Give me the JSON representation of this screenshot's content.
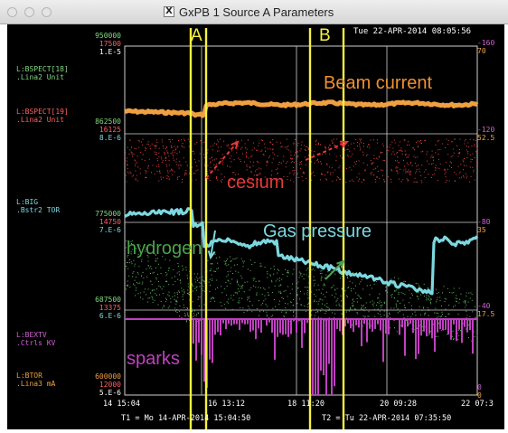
{
  "window": {
    "title": "GxPB 1 Source A Parameters",
    "x11_icon": "X"
  },
  "datetime": "Tue 22-APR-2014 08:05:56",
  "colors": {
    "orange": "#f0a040",
    "red": "#ff5050",
    "cyan": "#7cd8e0",
    "green": "#5ab05a",
    "magenta": "#c040c0",
    "yellow": "#f5f040",
    "grid": "#d0d0d0"
  },
  "channels": [
    {
      "name": "L:BSPECT[18]",
      "sub": ".Lina2 Unit"
    },
    {
      "name": "L:BSPECT[19]",
      "sub": ".Lina2 Unit"
    },
    {
      "name": "L:BIG",
      "sub": ".Bstr2 TOR"
    },
    {
      "name": "L:BEXTV",
      "sub": ".Ctrls  KV"
    },
    {
      "name": "L:BTOR",
      "sub": ".Lina3 mA"
    }
  ],
  "left_axis": {
    "top": [
      "950000",
      "17500",
      "1.E-5"
    ],
    "mid1": [
      "862500",
      "16125",
      "8.E-6"
    ],
    "mid2": [
      "775000",
      "14750",
      "7.E-6"
    ],
    "mid3": [
      "687500",
      "13375",
      "6.E-6"
    ],
    "bottom": [
      "600000",
      "12000",
      "5.E-6"
    ]
  },
  "right_axis": {
    "top": [
      "-160",
      "70"
    ],
    "mid1": [
      "-120",
      "52.5"
    ],
    "mid2": [
      "-80",
      "35"
    ],
    "mid3": [
      "-40",
      "17.5"
    ],
    "bottom": [
      "0",
      "0"
    ]
  },
  "x_ticks": [
    "14 15:04",
    "16 13:12",
    "18 11:20",
    "20 09:28",
    "22 07:3"
  ],
  "time_range": {
    "t1": "T1 = Mo 14-APR-2014 15:04:50",
    "t2": "T2 = Tu 22-APR-2014 07:35:50"
  },
  "annotations": {
    "A": "A",
    "B": "B",
    "beam": "Beam current",
    "cesium": "cesium",
    "gas": "Gas pressure",
    "hydrogen": "hydrogen",
    "sparks": "sparks"
  }
}
